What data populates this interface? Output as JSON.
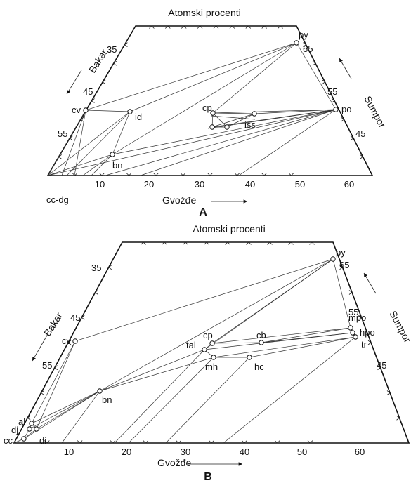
{
  "diagram_a": {
    "title": "Atomski procenti",
    "left_axis_label": "Bakar",
    "right_axis_label": "Sumpor",
    "bottom_axis_label": "Gvožđe",
    "panel_letter": "A",
    "corner_label": "cc-dg",
    "left_ticks": [
      "35",
      "45",
      "55"
    ],
    "right_ticks": [
      "65",
      "55",
      "45"
    ],
    "bottom_ticks": [
      "10",
      "20",
      "30",
      "40",
      "50",
      "60"
    ],
    "phases": [
      "py",
      "cv",
      "id",
      "cp",
      "iss",
      "po",
      "bn"
    ]
  },
  "diagram_b": {
    "title": "Atomski procenti",
    "left_axis_label": "Bakar",
    "right_axis_label": "Sumpor",
    "bottom_axis_label": "Gvožđe",
    "panel_letter": "B",
    "left_ticks": [
      "35",
      "45",
      "55"
    ],
    "right_ticks": [
      "65",
      "55",
      "45"
    ],
    "bottom_ticks": [
      "10",
      "20",
      "30",
      "40",
      "50",
      "60"
    ],
    "phases": [
      "py",
      "cv",
      "cp",
      "cb",
      "mpo",
      "hpo",
      "tr",
      "tal",
      "mh",
      "hc",
      "bn",
      "al",
      "dj",
      "di",
      "cc"
    ]
  },
  "colors": {
    "line": "#333333",
    "frame": "#111111",
    "background": "#ffffff"
  }
}
